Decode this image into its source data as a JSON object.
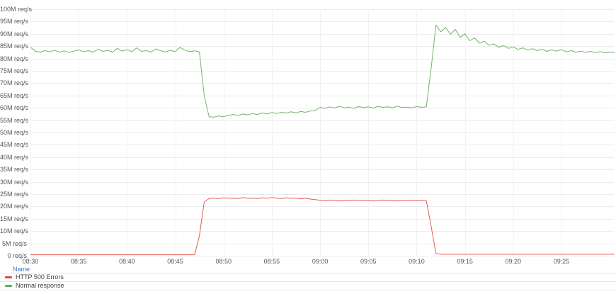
{
  "colors": {
    "background": "#ffffff",
    "grid_h": "#ececec",
    "grid_v": "#f2f2f2",
    "axis_text": "#55575c",
    "legend_link": "#3674d9",
    "legend_border": "#e8e8e8",
    "series_red": "#dd4b3e",
    "series_green": "#62ad57"
  },
  "chart_data": {
    "type": "line",
    "title": "",
    "xlabel": "",
    "ylabel": "",
    "unit": "req/s",
    "grid": true,
    "legend_position": "bottom-left",
    "legend_header": "Name",
    "x_axis": {
      "tick_minutes": [
        0,
        5,
        10,
        15,
        20,
        25,
        30,
        35,
        40,
        45,
        50,
        55
      ],
      "tick_labels": [
        "08:30",
        "08:35",
        "08:40",
        "08:45",
        "08:50",
        "08:55",
        "09:00",
        "09:05",
        "09:10",
        "09:15",
        "09:20",
        "09:25"
      ],
      "range_minutes": [
        0,
        60.5
      ]
    },
    "y_axis": {
      "range": [
        0,
        100
      ],
      "tick_values": [
        0,
        5,
        10,
        15,
        20,
        25,
        30,
        35,
        40,
        45,
        50,
        55,
        60,
        65,
        70,
        75,
        80,
        85,
        90,
        95,
        100
      ],
      "tick_labels": [
        "0 req/s",
        "5M req/s",
        "10M req/s",
        "15M req/s",
        "20M req/s",
        "25M req/s",
        "30M req/s",
        "35M req/s",
        "40M req/s",
        "45M req/s",
        "50M req/s",
        "55M req/s",
        "60M req/s",
        "65M req/s",
        "70M req/s",
        "75M req/s",
        "80M req/s",
        "85M req/s",
        "90M req/s",
        "95M req/s",
        "100M req/s"
      ]
    },
    "series": [
      {
        "name": "HTTP 500 Errors",
        "color": "#dd4b3e",
        "t_start": 0,
        "t_step": 0.5,
        "values": [
          0.4,
          0.4,
          0.4,
          0.4,
          0.4,
          0.4,
          0.4,
          0.4,
          0.4,
          0.4,
          0.4,
          0.4,
          0.4,
          0.4,
          0.4,
          0.4,
          0.4,
          0.4,
          0.4,
          0.4,
          0.4,
          0.4,
          0.4,
          0.4,
          0.4,
          0.4,
          0.4,
          0.4,
          0.4,
          0.4,
          0.4,
          0.4,
          0.4,
          0.4,
          0.4,
          8.0,
          21.8,
          23.2,
          23.4,
          23.2,
          23.5,
          23.3,
          23.4,
          23.2,
          23.6,
          23.3,
          23.4,
          23.2,
          23.5,
          23.3,
          23.6,
          23.4,
          23.2,
          23.5,
          23.3,
          23.4,
          23.1,
          23.3,
          23.0,
          22.8,
          22.5,
          22.3,
          22.6,
          22.4,
          22.2,
          22.5,
          22.3,
          22.6,
          22.4,
          22.3,
          22.5,
          22.2,
          22.4,
          22.6,
          22.3,
          22.5,
          22.2,
          22.4,
          22.3,
          22.5,
          22.3,
          22.4,
          22.3,
          12.0,
          0.9,
          0.6,
          0.6,
          0.6,
          0.6,
          0.6,
          0.6,
          0.6,
          0.6,
          0.6,
          0.6,
          0.6,
          0.6,
          0.6,
          0.6,
          0.6,
          0.6,
          0.6,
          0.6,
          0.6,
          0.6,
          0.6,
          0.6,
          0.6,
          0.6,
          0.6,
          0.6,
          0.6,
          0.6,
          0.6,
          0.6,
          0.6,
          0.6,
          0.6,
          0.6,
          0.6,
          0.6,
          0.6
        ]
      },
      {
        "name": "Normal response",
        "color": "#62ad57",
        "t_start": 0,
        "t_step": 0.5,
        "values": [
          84.6,
          83.0,
          82.6,
          83.2,
          82.7,
          83.4,
          82.6,
          83.1,
          82.5,
          83.0,
          83.5,
          82.7,
          83.2,
          82.6,
          83.8,
          82.9,
          83.3,
          82.6,
          84.1,
          83.0,
          83.6,
          82.8,
          84.3,
          82.9,
          83.2,
          82.6,
          83.9,
          83.1,
          82.7,
          83.3,
          82.8,
          84.5,
          83.4,
          82.8,
          83.1,
          82.7,
          65.0,
          56.4,
          56.2,
          56.7,
          56.4,
          56.9,
          57.3,
          56.9,
          57.5,
          57.1,
          57.7,
          57.3,
          57.9,
          57.5,
          58.1,
          57.7,
          58.2,
          57.9,
          58.4,
          58.0,
          58.5,
          58.2,
          58.7,
          58.9,
          60.2,
          59.8,
          60.4,
          59.9,
          60.6,
          60.0,
          60.3,
          59.8,
          60.5,
          60.1,
          60.4,
          59.9,
          60.6,
          60.2,
          60.4,
          60.0,
          60.7,
          60.1,
          60.3,
          60.0,
          60.5,
          60.2,
          60.4,
          76.0,
          93.6,
          90.8,
          92.6,
          89.8,
          91.8,
          88.6,
          90.0,
          87.2,
          88.4,
          86.2,
          87.0,
          85.4,
          85.9,
          84.6,
          85.2,
          84.1,
          84.7,
          83.7,
          84.3,
          83.4,
          84.0,
          83.2,
          83.8,
          82.9,
          83.5,
          83.0,
          83.6,
          82.7,
          83.2,
          82.6,
          83.0,
          82.5,
          82.9,
          82.4,
          82.8,
          82.3,
          82.6,
          82.4
        ]
      }
    ]
  }
}
